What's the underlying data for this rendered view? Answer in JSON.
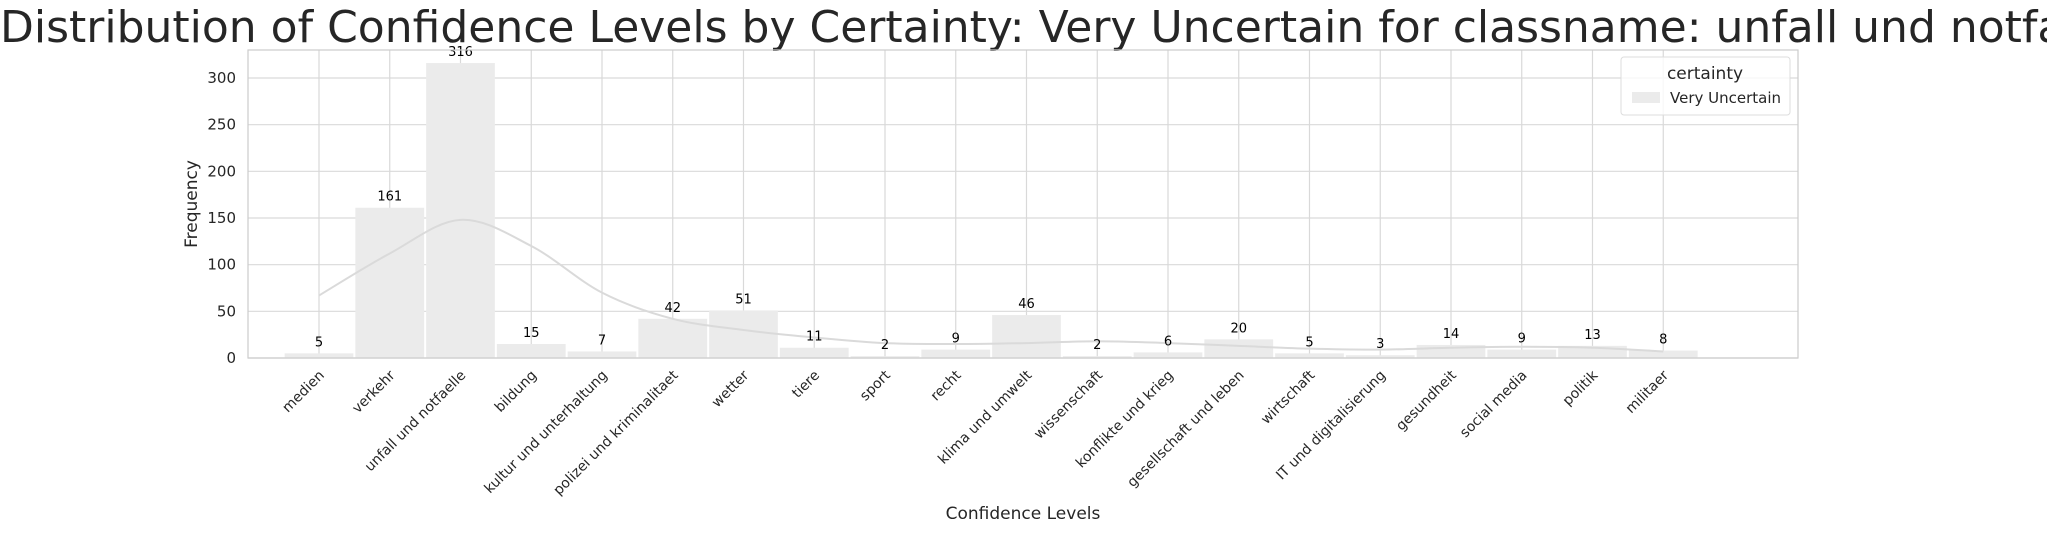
{
  "chart_data": {
    "type": "bar",
    "title": "Distribution of Confidence Levels by Certainty: Very Uncertain for classname: unfall und notfaelle",
    "xlabel": "Confidence Levels",
    "ylabel": "Frequency",
    "ylim": [
      0,
      330
    ],
    "yticks": [
      0,
      50,
      100,
      150,
      200,
      250,
      300
    ],
    "grid": true,
    "legend": {
      "title": "certainty",
      "placement": "top-right",
      "entries": [
        {
          "label": "Very Uncertain",
          "color": "#ebebeb"
        }
      ]
    },
    "categories": [
      "medien",
      "verkehr",
      "unfall und notfaelle",
      "bildung",
      "kultur und unterhaltung",
      "polizei und kriminalitaet",
      "wetter",
      "tiere",
      "sport",
      "recht",
      "klima und umwelt",
      "wissenschaft",
      "konflikte und krieg",
      "gesellschaft und leben",
      "wirtschaft",
      "IT und digitalisierung",
      "gesundheit",
      "social media",
      "politik",
      "militaer"
    ],
    "series": [
      {
        "name": "Very Uncertain",
        "color": "#ebebeb",
        "values": [
          5,
          161,
          316,
          15,
          7,
          42,
          51,
          11,
          2,
          9,
          46,
          2,
          6,
          20,
          5,
          3,
          14,
          9,
          13,
          8
        ]
      }
    ],
    "kde": {
      "color": "#dadada",
      "values": [
        67,
        112,
        148,
        120,
        70,
        42,
        30,
        22,
        16,
        15,
        16,
        18,
        16,
        13,
        10,
        9,
        11,
        12,
        11,
        7
      ]
    }
  }
}
